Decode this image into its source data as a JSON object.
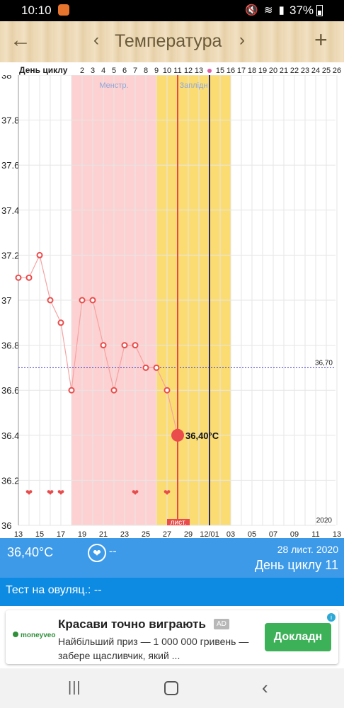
{
  "status_bar": {
    "time": "10:10",
    "battery": "37%",
    "icons": [
      "mute-icon",
      "wifi-icon",
      "signal-icon",
      "battery-icon"
    ]
  },
  "toolbar": {
    "back_icon": "←",
    "prev_icon": "‹",
    "title": "Температура",
    "next_icon": "›",
    "add_icon": "+"
  },
  "chart_data": {
    "type": "line",
    "cycle_header_label": "День циклу",
    "cycle_days": [
      "2",
      "3",
      "4",
      "5",
      "6",
      "7",
      "8",
      "9",
      "10",
      "11",
      "12",
      "13",
      "",
      "15",
      "16",
      "17",
      "18",
      "19",
      "20",
      "21",
      "22",
      "23",
      "24",
      "25",
      "26"
    ],
    "x_tick_labels": [
      "13",
      "15",
      "17",
      "19",
      "21",
      "23",
      "25",
      "27",
      "29",
      "12/01",
      "03",
      "05",
      "07",
      "09",
      "11",
      "13"
    ],
    "y_tick_labels": [
      "38",
      "37.8",
      "37.6",
      "37.4",
      "37.2",
      "37",
      "36.8",
      "36.6",
      "36.4",
      "36.2",
      "36"
    ],
    "ylim": [
      36,
      38
    ],
    "phase_labels": {
      "menstruation": "Менстр.",
      "fertile": "Заплідн"
    },
    "coverline": {
      "value": 36.7,
      "label": "36,70"
    },
    "series": [
      {
        "values": [
          37.1,
          37.1,
          37.2,
          37.0,
          36.9,
          36.6,
          37.0,
          37.0,
          36.8,
          36.6,
          36.8,
          36.8,
          36.7,
          36.7,
          36.6,
          36.4
        ]
      }
    ],
    "selected_label": "36,40°C",
    "heart_days": [
      "14",
      "16",
      "17",
      "24",
      "27"
    ],
    "month_marker": "лист.",
    "year_label": "2020",
    "colors": {
      "menstruation": "#fdd1d1",
      "fertile": "#fbdc72",
      "line": "#f6a2a2",
      "point": "#ea4b4b",
      "coverline": "#3a3ac8",
      "today": "#2a2a6a",
      "selected": "#e54848"
    }
  },
  "info": {
    "temperature": "36,40°C",
    "heart_icon": "❤",
    "heart_value": "--",
    "date": "28 лист. 2020",
    "cycle_day": "День циклу 11"
  },
  "test": {
    "label": "Тест на овуляц.: --"
  },
  "ad": {
    "brand": "moneyveo",
    "headline": "Красави точно виграють",
    "badge": "AD",
    "description": "Найбільший приз — 1 000 000 гривень — забере щасливчик, який ...",
    "cta": "Докладн",
    "info_icon": "i"
  },
  "navbar": {
    "recent_icon": "|||",
    "back_icon": "‹"
  }
}
